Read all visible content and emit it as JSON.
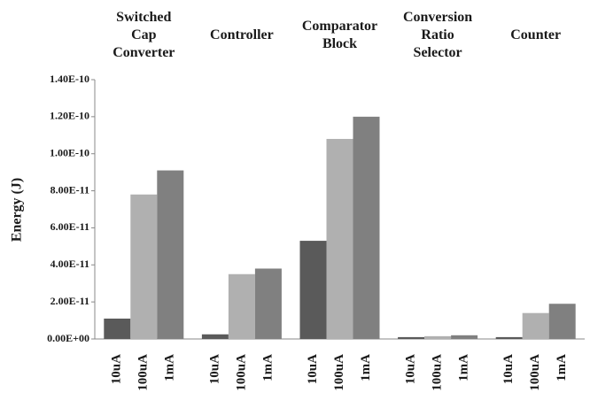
{
  "chart_data": {
    "type": "bar",
    "y_label": "Energy (J)",
    "categories": [
      "Switched Cap Converter",
      "Controller",
      "Comparator Block",
      "Conversion Ratio Selector",
      "Counter"
    ],
    "series": [
      {
        "name": "10uA",
        "color": "#5a5a5a",
        "values": [
          1.1e-11,
          2.5e-12,
          5.3e-11,
          1e-12,
          1e-12
        ]
      },
      {
        "name": "100uA",
        "color": "#b0b0b0",
        "values": [
          7.8e-11,
          3.5e-11,
          1.08e-10,
          1.5e-12,
          1.4e-11
        ]
      },
      {
        "name": "1mA",
        "color": "#808080",
        "values": [
          9.1e-11,
          3.8e-11,
          1.2e-10,
          2e-12,
          1.9e-11
        ]
      }
    ],
    "ylim": [
      0,
      1.4e-10
    ],
    "yticks": [
      {
        "value": 0,
        "label": "0.00E+00"
      },
      {
        "value": 2e-11,
        "label": "2.00E-11"
      },
      {
        "value": 4e-11,
        "label": "4.00E-11"
      },
      {
        "value": 6e-11,
        "label": "6.00E-11"
      },
      {
        "value": 8e-11,
        "label": "8.00E-11"
      },
      {
        "value": 1e-10,
        "label": "1.00E-10"
      },
      {
        "value": 1.2e-10,
        "label": "1.20E-10"
      },
      {
        "value": 1.4e-10,
        "label": "1.40E-10"
      }
    ],
    "grid": false
  }
}
